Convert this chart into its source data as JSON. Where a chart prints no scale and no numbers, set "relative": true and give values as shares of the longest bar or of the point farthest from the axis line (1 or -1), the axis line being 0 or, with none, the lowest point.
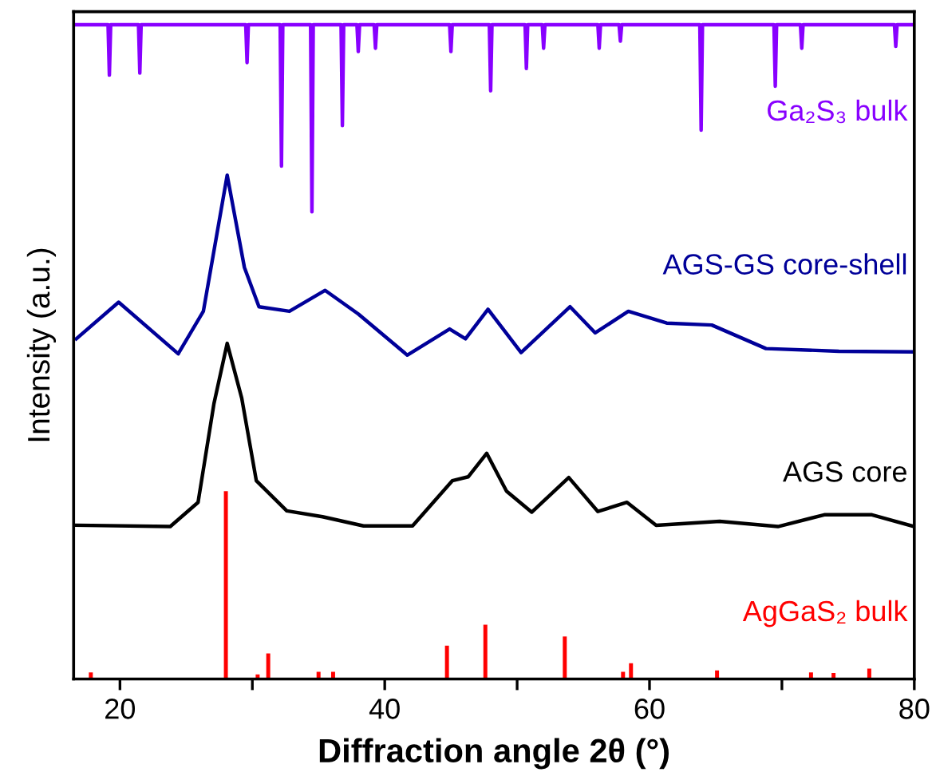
{
  "chart_data": {
    "type": "line",
    "relative": true,
    "xlabel": "Diffraction angle 2θ (°)",
    "ylabel": "Intensity (a.u.)",
    "xlim": [
      16.5,
      80
    ],
    "xticks": [
      20,
      {
        "value": 30,
        "label": null
      },
      40,
      {
        "value": 50,
        "label": null
      },
      60,
      {
        "value": 70,
        "label": null
      },
      80
    ],
    "grid": false,
    "legend": false,
    "line_style": "solid",
    "marker": "none",
    "series": [
      {
        "name": "Ga₂S₃ bulk",
        "color": "#8800ff",
        "x": [
          16.5,
          19.1,
          19.2,
          19.3,
          21.4,
          21.5,
          21.6,
          29.5,
          29.6,
          29.7,
          32.1,
          32.2,
          32.3,
          34.4,
          34.5,
          34.6,
          36.7,
          36.8,
          36.9,
          37.9,
          38.0,
          38.1,
          39.2,
          39.3,
          39.4,
          44.9,
          45.0,
          45.1,
          47.9,
          48.0,
          48.1,
          50.6,
          50.7,
          50.8,
          51.9,
          52.0,
          52.1,
          56.1,
          56.2,
          56.3,
          57.7,
          57.8,
          57.9,
          63.8,
          63.9,
          64.0,
          69.4,
          69.5,
          69.6,
          71.4,
          71.5,
          71.6,
          78.5,
          78.6,
          78.7,
          80
        ],
        "values": [
          1,
          1,
          0.923,
          1,
          1,
          0.926,
          1,
          1,
          0.942,
          1,
          1,
          0.784,
          1,
          1,
          0.714,
          1,
          1,
          0.846,
          1,
          1,
          0.959,
          1,
          1,
          0.964,
          1,
          1,
          0.959,
          1,
          1,
          0.899,
          1,
          1,
          0.933,
          1,
          1,
          0.964,
          1,
          1,
          0.964,
          1,
          1,
          0.975,
          1,
          1,
          0.839,
          1,
          1,
          0.906,
          1,
          1,
          0.964,
          1,
          1,
          0.967,
          1,
          1
        ]
      },
      {
        "name": "AGS-GS core-shell",
        "color": "#000099",
        "x": [
          16.7,
          19.9,
          24.4,
          26.3,
          28.1,
          29.4,
          30.5,
          32.8,
          35.5,
          38.0,
          41.7,
          44.9,
          46.1,
          47.8,
          50.3,
          54.0,
          55.9,
          58.4,
          61.3,
          64.7,
          68.8,
          74.3,
          80
        ],
        "values": [
          0.52,
          0.576,
          0.497,
          0.562,
          0.77,
          0.629,
          0.569,
          0.562,
          0.594,
          0.558,
          0.495,
          0.535,
          0.52,
          0.565,
          0.499,
          0.569,
          0.529,
          0.562,
          0.544,
          0.541,
          0.505,
          0.501,
          0.5
        ]
      },
      {
        "name": "AGS core",
        "color": "#000000",
        "x": [
          16.7,
          23.8,
          25.9,
          27.1,
          28.1,
          29.2,
          30.3,
          32.6,
          35.3,
          38.4,
          42.1,
          45.1,
          46.3,
          47.7,
          49.2,
          51.1,
          53.9,
          56.1,
          58.3,
          60.5,
          65.3,
          69.7,
          73.2,
          76.8,
          80
        ],
        "values": [
          0.235,
          0.233,
          0.27,
          0.421,
          0.513,
          0.429,
          0.303,
          0.257,
          0.248,
          0.234,
          0.234,
          0.303,
          0.309,
          0.345,
          0.287,
          0.255,
          0.308,
          0.256,
          0.27,
          0.235,
          0.241,
          0.233,
          0.251,
          0.251,
          0.233
        ]
      },
      {
        "name": "AgGaS₂ bulk",
        "color": "#ff0000",
        "type": "bar",
        "x": [
          17.8,
          28.0,
          30.4,
          31.2,
          35.0,
          36.1,
          44.7,
          47.6,
          53.6,
          58.0,
          58.6,
          65.1,
          72.2,
          73.9,
          76.6
        ],
        "values": [
          0.01,
          0.287,
          0.007,
          0.039,
          0.011,
          0.011,
          0.051,
          0.083,
          0.065,
          0.011,
          0.024,
          0.013,
          0.01,
          0.009,
          0.016
        ]
      }
    ]
  }
}
